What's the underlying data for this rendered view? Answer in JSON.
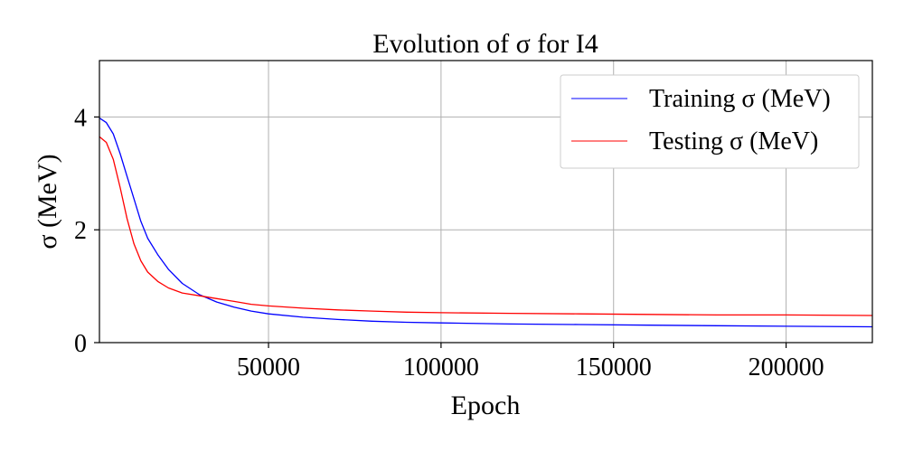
{
  "chart_data": {
    "type": "line",
    "title": "Evolution of σ for I4",
    "xlabel": "Epoch",
    "ylabel": "σ (MeV)",
    "xlim": [
      1000,
      225000
    ],
    "ylim": [
      0,
      5
    ],
    "x_ticks": [
      50000,
      100000,
      150000,
      200000
    ],
    "x_tick_labels": [
      "50000",
      "100000",
      "150000",
      "200000"
    ],
    "y_ticks": [
      0,
      2,
      4
    ],
    "y_tick_labels": [
      "0",
      "2",
      "4"
    ],
    "grid": true,
    "legend_position": "top-right",
    "series": [
      {
        "name": "Training σ (MeV)",
        "color": "#0000ff",
        "x": [
          1000,
          3000,
          5000,
          7000,
          9000,
          11000,
          13000,
          15000,
          18000,
          21000,
          25000,
          30000,
          35000,
          40000,
          45000,
          50000,
          60000,
          70000,
          80000,
          90000,
          100000,
          120000,
          140000,
          160000,
          180000,
          200000,
          225000
        ],
        "y": [
          3.98,
          3.9,
          3.7,
          3.35,
          2.95,
          2.55,
          2.15,
          1.85,
          1.55,
          1.3,
          1.05,
          0.85,
          0.72,
          0.63,
          0.56,
          0.51,
          0.45,
          0.41,
          0.38,
          0.36,
          0.35,
          0.33,
          0.32,
          0.31,
          0.3,
          0.29,
          0.28
        ]
      },
      {
        "name": "Testing σ (MeV)",
        "color": "#ff0000",
        "x": [
          1000,
          3000,
          5000,
          7000,
          9000,
          11000,
          13000,
          15000,
          18000,
          21000,
          25000,
          30000,
          35000,
          40000,
          45000,
          50000,
          60000,
          70000,
          80000,
          90000,
          100000,
          120000,
          140000,
          160000,
          180000,
          200000,
          225000
        ],
        "y": [
          3.65,
          3.55,
          3.25,
          2.75,
          2.2,
          1.75,
          1.45,
          1.25,
          1.08,
          0.97,
          0.88,
          0.83,
          0.78,
          0.73,
          0.68,
          0.65,
          0.61,
          0.58,
          0.56,
          0.54,
          0.53,
          0.52,
          0.51,
          0.5,
          0.49,
          0.49,
          0.48
        ]
      }
    ]
  }
}
